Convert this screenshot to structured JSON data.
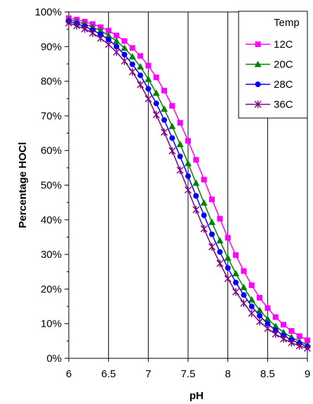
{
  "chart_data": {
    "type": "line",
    "title": "",
    "xlabel": "pH",
    "ylabel": "Percentage HOCl",
    "xlim": [
      6,
      9
    ],
    "ylim": [
      0,
      100
    ],
    "x_ticks": [
      "6",
      "6.5",
      "7",
      "7.5",
      "8",
      "8.5",
      "9"
    ],
    "y_ticks": [
      "0%",
      "10%",
      "20%",
      "30%",
      "40%",
      "50%",
      "60%",
      "70%",
      "80%",
      "90%",
      "100%"
    ],
    "grid": "vertical",
    "legend": {
      "title": "Temp",
      "position": "top-right"
    },
    "x": [
      6.0,
      6.1,
      6.2,
      6.3,
      6.4,
      6.5,
      6.6,
      6.7,
      6.8,
      6.9,
      7.0,
      7.1,
      7.2,
      7.3,
      7.4,
      7.5,
      7.6,
      7.7,
      7.8,
      7.9,
      8.0,
      8.1,
      8.2,
      8.3,
      8.4,
      8.5,
      8.6,
      8.7,
      8.8,
      8.9,
      9.0
    ],
    "series": [
      {
        "name": "12C",
        "color": "#ff00ff",
        "marker": "square",
        "values": [
          98.2,
          97.8,
          97.2,
          96.5,
          95.6,
          94.6,
          93.2,
          91.6,
          89.6,
          87.3,
          84.5,
          81.1,
          77.3,
          72.9,
          68.0,
          62.8,
          57.3,
          51.6,
          45.9,
          40.3,
          34.8,
          29.8,
          25.2,
          21.1,
          17.5,
          14.5,
          11.9,
          9.7,
          7.9,
          6.4,
          5.2
        ]
      },
      {
        "name": "20C",
        "color": "#008000",
        "marker": "triangle",
        "values": [
          97.8,
          97.2,
          96.5,
          95.6,
          94.6,
          93.2,
          91.6,
          89.6,
          87.1,
          84.2,
          80.6,
          76.6,
          72.0,
          67.0,
          61.8,
          56.3,
          50.6,
          44.9,
          39.3,
          34.0,
          29.0,
          24.5,
          20.5,
          16.9,
          13.9,
          11.4,
          9.3,
          7.5,
          6.1,
          4.9,
          3.9
        ]
      },
      {
        "name": "28C",
        "color": "#0000ff",
        "marker": "circle",
        "values": [
          97.3,
          96.6,
          95.8,
          94.8,
          93.5,
          92.0,
          90.0,
          87.7,
          84.9,
          81.7,
          77.8,
          73.6,
          68.8,
          63.6,
          58.3,
          52.6,
          46.9,
          41.3,
          35.8,
          30.7,
          26.1,
          21.9,
          18.3,
          15.0,
          12.3,
          10.0,
          8.1,
          6.6,
          5.3,
          4.3,
          3.4
        ]
      },
      {
        "name": "36C",
        "color": "#800080",
        "marker": "star",
        "values": [
          96.8,
          96.0,
          95.1,
          93.9,
          92.4,
          90.6,
          88.4,
          85.8,
          82.7,
          79.0,
          74.9,
          70.3,
          65.3,
          59.9,
          54.3,
          48.6,
          42.9,
          37.4,
          32.2,
          27.4,
          23.0,
          19.2,
          15.9,
          13.0,
          10.6,
          8.6,
          7.0,
          5.6,
          4.5,
          3.6,
          2.9
        ]
      }
    ]
  }
}
